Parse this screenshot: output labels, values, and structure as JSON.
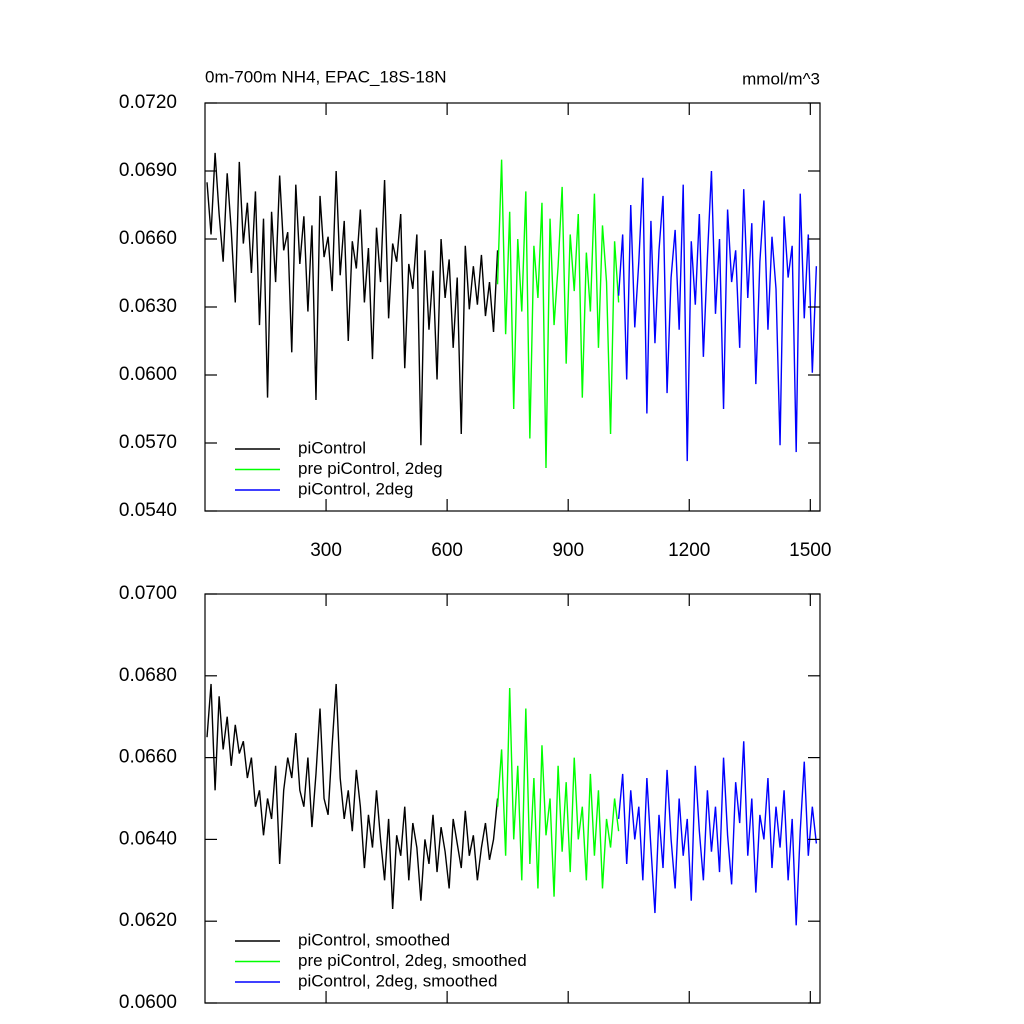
{
  "chart_data": [
    {
      "type": "line",
      "title": "0m-700m NH4, EPAC_18S-18N",
      "units": "mmol/m^3",
      "xlim": [
        0,
        1524
      ],
      "xticks": [
        300,
        600,
        900,
        1200,
        1500
      ],
      "ylim": [
        0.054,
        0.072
      ],
      "yticks": [
        {
          "value": 0.054,
          "label": "0.0540"
        },
        {
          "value": 0.057,
          "label": "0.0570"
        },
        {
          "value": 0.06,
          "label": "0.0600"
        },
        {
          "value": 0.063,
          "label": "0.0630"
        },
        {
          "value": 0.066,
          "label": "0.0660"
        },
        {
          "value": 0.069,
          "label": "0.0690"
        },
        {
          "value": 0.072,
          "label": "0.0720"
        }
      ],
      "legend": "lower left",
      "series": [
        {
          "name": "piControl",
          "color": "#000000",
          "x": [
            5,
            15,
            25,
            35,
            45,
            55,
            65,
            75,
            85,
            95,
            105,
            115,
            125,
            135,
            145,
            155,
            165,
            175,
            185,
            195,
            205,
            215,
            225,
            235,
            245,
            255,
            265,
            275,
            285,
            295,
            305,
            315,
            325,
            335,
            345,
            355,
            365,
            375,
            385,
            395,
            405,
            415,
            425,
            435,
            445,
            455,
            465,
            475,
            485,
            495,
            505,
            515,
            525,
            535,
            545,
            555,
            565,
            575,
            585,
            595,
            605,
            615,
            625,
            635,
            645,
            655,
            665,
            675,
            685,
            695,
            705,
            715,
            725
          ],
          "values": [
            0.0685,
            0.0662,
            0.0698,
            0.0671,
            0.065,
            0.0689,
            0.0664,
            0.0632,
            0.0694,
            0.0658,
            0.0676,
            0.0645,
            0.0681,
            0.0622,
            0.0669,
            0.059,
            0.0672,
            0.0641,
            0.0688,
            0.0655,
            0.0663,
            0.061,
            0.0684,
            0.0649,
            0.067,
            0.0628,
            0.0666,
            0.0589,
            0.0679,
            0.0652,
            0.0661,
            0.0637,
            0.069,
            0.0644,
            0.0668,
            0.0615,
            0.0659,
            0.0647,
            0.0673,
            0.0632,
            0.0656,
            0.0607,
            0.0665,
            0.0641,
            0.0686,
            0.0625,
            0.0658,
            0.065,
            0.0671,
            0.0603,
            0.0649,
            0.0638,
            0.0662,
            0.0569,
            0.0655,
            0.062,
            0.0646,
            0.0598,
            0.066,
            0.0634,
            0.0651,
            0.0612,
            0.0643,
            0.0574,
            0.0657,
            0.0629,
            0.0648,
            0.0631,
            0.0653,
            0.0626,
            0.0641,
            0.0619,
            0.0655
          ]
        },
        {
          "name": "pre piControl, 2deg",
          "color": "#00ff00",
          "x": [
            725,
            735,
            745,
            755,
            765,
            775,
            785,
            795,
            805,
            815,
            825,
            835,
            845,
            855,
            865,
            875,
            885,
            895,
            905,
            915,
            925,
            935,
            945,
            955,
            965,
            975,
            985,
            995,
            1005,
            1015,
            1025
          ],
          "values": [
            0.064,
            0.0695,
            0.0618,
            0.0672,
            0.0585,
            0.066,
            0.0628,
            0.0681,
            0.0572,
            0.0657,
            0.0634,
            0.0676,
            0.0559,
            0.0669,
            0.0622,
            0.0648,
            0.0683,
            0.0605,
            0.0662,
            0.0637,
            0.0671,
            0.059,
            0.0654,
            0.0628,
            0.068,
            0.0612,
            0.0666,
            0.0641,
            0.0574,
            0.0659,
            0.0632
          ]
        },
        {
          "name": "piControl, 2deg",
          "color": "#0000ff",
          "x": [
            1025,
            1035,
            1045,
            1055,
            1065,
            1075,
            1085,
            1095,
            1105,
            1115,
            1125,
            1135,
            1145,
            1155,
            1165,
            1175,
            1185,
            1195,
            1205,
            1215,
            1225,
            1235,
            1245,
            1255,
            1265,
            1275,
            1285,
            1295,
            1305,
            1315,
            1325,
            1335,
            1345,
            1355,
            1365,
            1375,
            1385,
            1395,
            1405,
            1415,
            1425,
            1435,
            1445,
            1455,
            1465,
            1475,
            1485,
            1495,
            1505,
            1515
          ],
          "values": [
            0.0635,
            0.0662,
            0.0598,
            0.0675,
            0.0621,
            0.065,
            0.0687,
            0.0583,
            0.0668,
            0.0614,
            0.0655,
            0.0679,
            0.0592,
            0.0643,
            0.0664,
            0.062,
            0.0684,
            0.0562,
            0.0659,
            0.0631,
            0.0671,
            0.0608,
            0.0652,
            0.069,
            0.0627,
            0.066,
            0.0585,
            0.0673,
            0.0641,
            0.0655,
            0.0612,
            0.0682,
            0.0634,
            0.0667,
            0.0596,
            0.065,
            0.0677,
            0.062,
            0.0661,
            0.0638,
            0.0569,
            0.067,
            0.0643,
            0.0657,
            0.0566,
            0.068,
            0.0625,
            0.0662,
            0.0601,
            0.0648
          ]
        }
      ]
    },
    {
      "type": "line",
      "xlim": [
        0,
        1524
      ],
      "xticks": [
        300,
        600,
        900,
        1200,
        1500
      ],
      "ylim": [
        0.06,
        0.07
      ],
      "yticks": [
        {
          "value": 0.06,
          "label": "0.0600"
        },
        {
          "value": 0.062,
          "label": "0.0620"
        },
        {
          "value": 0.064,
          "label": "0.0640"
        },
        {
          "value": 0.066,
          "label": "0.0660"
        },
        {
          "value": 0.068,
          "label": "0.0680"
        },
        {
          "value": 0.07,
          "label": "0.0700"
        }
      ],
      "legend": "lower left",
      "series": [
        {
          "name": "piControl, smoothed",
          "color": "#000000",
          "x": [
            5,
            15,
            25,
            35,
            45,
            55,
            65,
            75,
            85,
            95,
            105,
            115,
            125,
            135,
            145,
            155,
            165,
            175,
            185,
            195,
            205,
            215,
            225,
            235,
            245,
            255,
            265,
            275,
            285,
            295,
            305,
            315,
            325,
            335,
            345,
            355,
            365,
            375,
            385,
            395,
            405,
            415,
            425,
            435,
            445,
            455,
            465,
            475,
            485,
            495,
            505,
            515,
            525,
            535,
            545,
            555,
            565,
            575,
            585,
            595,
            605,
            615,
            625,
            635,
            645,
            655,
            665,
            675,
            685,
            695,
            705,
            715,
            725
          ],
          "values": [
            0.0665,
            0.0678,
            0.0652,
            0.0675,
            0.0662,
            0.067,
            0.0658,
            0.0668,
            0.0661,
            0.0664,
            0.0655,
            0.066,
            0.0648,
            0.0652,
            0.0641,
            0.065,
            0.0645,
            0.0658,
            0.0634,
            0.0652,
            0.066,
            0.0655,
            0.0666,
            0.0652,
            0.0648,
            0.066,
            0.0643,
            0.0656,
            0.0672,
            0.065,
            0.0646,
            0.0663,
            0.0678,
            0.0655,
            0.0645,
            0.0652,
            0.0642,
            0.0657,
            0.0648,
            0.0633,
            0.0646,
            0.0638,
            0.0652,
            0.064,
            0.063,
            0.0645,
            0.0623,
            0.0641,
            0.0636,
            0.0648,
            0.063,
            0.0644,
            0.0638,
            0.0625,
            0.064,
            0.0634,
            0.0646,
            0.0632,
            0.0643,
            0.0637,
            0.0628,
            0.0645,
            0.0639,
            0.0633,
            0.0647,
            0.0636,
            0.0641,
            0.063,
            0.0638,
            0.0644,
            0.0635,
            0.064,
            0.065
          ]
        },
        {
          "name": "pre piControl, 2deg, smoothed",
          "color": "#00ff00",
          "x": [
            725,
            735,
            745,
            755,
            765,
            775,
            785,
            795,
            805,
            815,
            825,
            835,
            845,
            855,
            865,
            875,
            885,
            895,
            905,
            915,
            925,
            935,
            945,
            955,
            965,
            975,
            985,
            995,
            1005,
            1015,
            1025
          ],
          "values": [
            0.0648,
            0.0662,
            0.0636,
            0.0677,
            0.064,
            0.0658,
            0.063,
            0.0672,
            0.0634,
            0.0655,
            0.0628,
            0.0663,
            0.0641,
            0.065,
            0.0626,
            0.0658,
            0.0637,
            0.0654,
            0.0632,
            0.066,
            0.064,
            0.0648,
            0.063,
            0.0656,
            0.0636,
            0.0652,
            0.0628,
            0.0645,
            0.0638,
            0.065,
            0.0642
          ]
        },
        {
          "name": "piControl, 2deg, smoothed",
          "color": "#0000ff",
          "x": [
            1025,
            1035,
            1045,
            1055,
            1065,
            1075,
            1085,
            1095,
            1105,
            1115,
            1125,
            1135,
            1145,
            1155,
            1165,
            1175,
            1185,
            1195,
            1205,
            1215,
            1225,
            1235,
            1245,
            1255,
            1265,
            1275,
            1285,
            1295,
            1305,
            1315,
            1325,
            1335,
            1345,
            1355,
            1365,
            1375,
            1385,
            1395,
            1405,
            1415,
            1425,
            1435,
            1445,
            1455,
            1465,
            1475,
            1485,
            1495,
            1505,
            1515
          ],
          "values": [
            0.0645,
            0.0656,
            0.0634,
            0.0652,
            0.064,
            0.0648,
            0.063,
            0.0655,
            0.0638,
            0.0622,
            0.0646,
            0.0633,
            0.0657,
            0.064,
            0.0628,
            0.065,
            0.0636,
            0.0645,
            0.0625,
            0.0658,
            0.0642,
            0.063,
            0.0652,
            0.0637,
            0.0648,
            0.0632,
            0.066,
            0.0641,
            0.0629,
            0.0654,
            0.0644,
            0.0664,
            0.0636,
            0.065,
            0.0627,
            0.0646,
            0.064,
            0.0655,
            0.0633,
            0.0648,
            0.0638,
            0.0652,
            0.063,
            0.0645,
            0.0619,
            0.0642,
            0.0659,
            0.0636,
            0.0648,
            0.0639
          ]
        }
      ]
    }
  ]
}
